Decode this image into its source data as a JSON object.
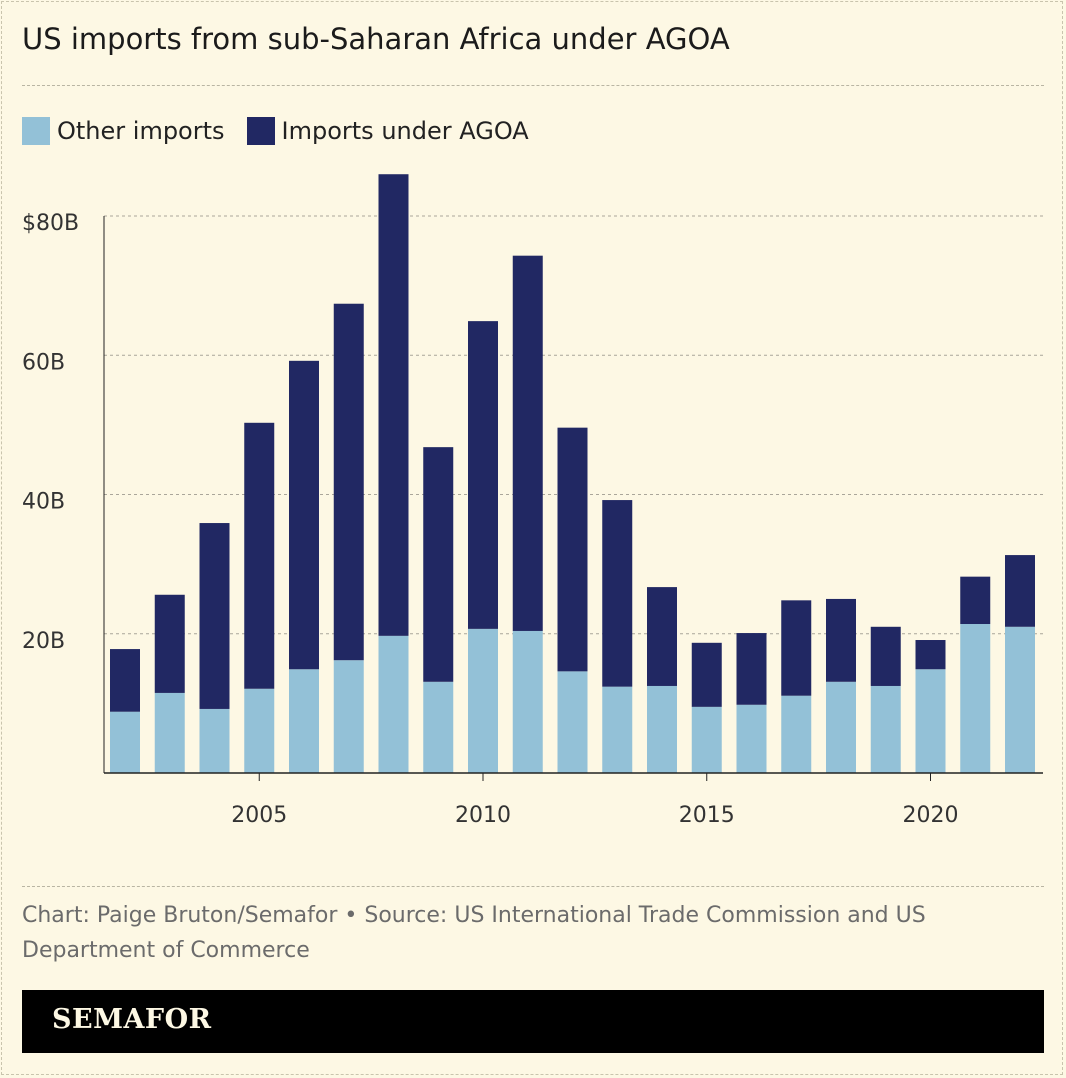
{
  "title": "US imports from sub-Saharan Africa under AGOA",
  "footer": "Chart: Paige Bruton/Semafor • Source: US International Trade Commission and US Department of Commerce",
  "brand": "SEMAFOR",
  "chart_data": {
    "type": "bar",
    "stacked": true,
    "title": "US imports from sub-Saharan Africa under AGOA",
    "x": [
      2002,
      2003,
      2004,
      2005,
      2006,
      2007,
      2008,
      2009,
      2010,
      2011,
      2012,
      2013,
      2014,
      2015,
      2016,
      2017,
      2018,
      2019,
      2020,
      2021,
      2022
    ],
    "series": [
      {
        "name": "Other imports",
        "color": "#93c1d7",
        "values": [
          8.8,
          11.5,
          9.2,
          12.1,
          14.9,
          16.2,
          19.7,
          13.1,
          20.7,
          20.4,
          14.6,
          12.4,
          12.5,
          9.5,
          9.8,
          11.1,
          13.1,
          12.5,
          14.9,
          21.4,
          21.0
        ]
      },
      {
        "name": "Imports under AGOA",
        "color": "#212863",
        "values": [
          9.0,
          14.1,
          26.7,
          38.2,
          44.3,
          51.2,
          66.3,
          33.7,
          44.2,
          53.9,
          35.0,
          26.8,
          14.2,
          9.2,
          10.3,
          13.7,
          11.9,
          8.5,
          4.2,
          6.8,
          10.3
        ]
      }
    ],
    "yticks": [
      {
        "value": 20,
        "label": "20B"
      },
      {
        "value": 40,
        "label": "40B"
      },
      {
        "value": 60,
        "label": "60B"
      },
      {
        "value": 80,
        "label": "$80B"
      }
    ],
    "xticks": [
      {
        "value": 2005,
        "label": "2005"
      },
      {
        "value": 2010,
        "label": "2010"
      },
      {
        "value": 2015,
        "label": "2015"
      },
      {
        "value": 2020,
        "label": "2020"
      }
    ],
    "ylim": [
      0,
      80
    ],
    "grid": true,
    "legend": "top-left"
  }
}
